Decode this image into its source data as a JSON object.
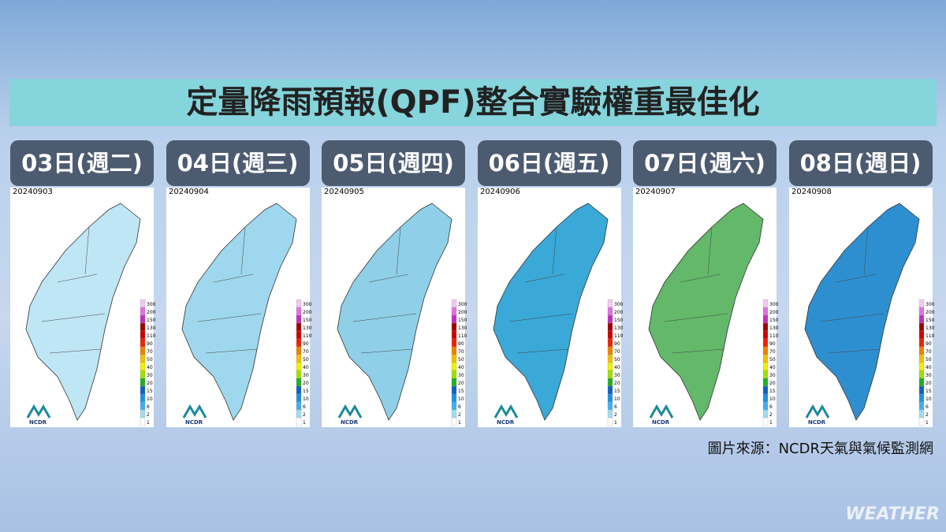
{
  "title": "定量降雨預報(QPF)整合實驗權重最佳化",
  "panels": [
    {
      "day": "03日(週二)",
      "date": "20240903",
      "fill": "#bfe6f5"
    },
    {
      "day": "04日(週三)",
      "date": "20240904",
      "fill": "#9fd8ee"
    },
    {
      "day": "05日(週四)",
      "date": "20240905",
      "fill": "#8fd0e8"
    },
    {
      "day": "06日(週五)",
      "date": "20240906",
      "fill": "#3aa9d8"
    },
    {
      "day": "07日(週六)",
      "date": "20240907",
      "fill": "#63b86a"
    },
    {
      "day": "08日(週日)",
      "date": "20240908",
      "fill": "#2e8fd0"
    }
  ],
  "legend": {
    "levels": [
      300,
      200,
      150,
      130,
      110,
      90,
      70,
      50,
      40,
      30,
      20,
      15,
      10,
      6,
      2,
      1
    ],
    "colors": [
      "#f0c8f0",
      "#e070e0",
      "#c030c0",
      "#a00000",
      "#d00000",
      "#f02000",
      "#f08000",
      "#f0c000",
      "#f0f000",
      "#a0e000",
      "#20b020",
      "#1060c0",
      "#2090e0",
      "#40b0f0",
      "#a0dcf0",
      "#ffffff"
    ]
  },
  "logo": "NCDR",
  "source": "圖片來源：NCDR天氣與氣候監測網",
  "watermark": "WEATHER"
}
